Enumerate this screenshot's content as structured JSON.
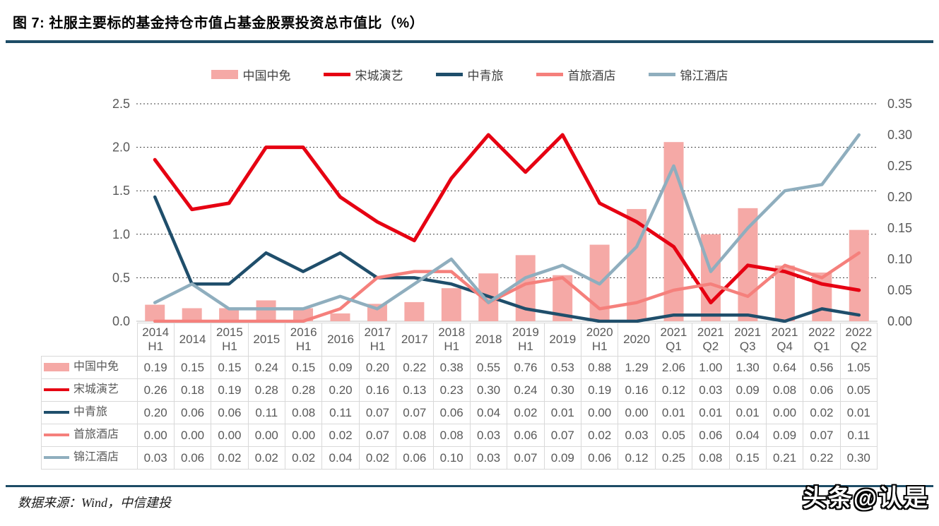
{
  "title": "图 7: 社服主要标的基金持仓市值占基金股票投资总市值比（%）",
  "source_note": "数据来源：Wind，中信建投",
  "watermark": "头条@认是",
  "colors": {
    "accent_rule": "#1D4C66",
    "bar_pink": "#F5A9A6",
    "red": "#E60012",
    "navy": "#1F4E6B",
    "salmon": "#F5807C",
    "gray_blue": "#8FAEBE",
    "axis_text": "#595959",
    "grid_border": "#D9D9D9"
  },
  "chart_data": {
    "type": "bar",
    "subtype": "combo-bar-line-dual-axis",
    "title": "社服主要标的基金持仓市值占基金股票投资总市值比（%）",
    "xlabel": "",
    "ylabel_left": "",
    "ylabel_right": "",
    "grid": "horizontal dashed",
    "legend_position": "top-center",
    "categories": [
      "2014 H1",
      "2014",
      "2015 H1",
      "2015",
      "2016 H1",
      "2016",
      "2017 H1",
      "2017",
      "2018 H1",
      "2018",
      "2019 H1",
      "2019",
      "2020 H1",
      "2020",
      "2021 Q1",
      "2021 Q2",
      "2021 Q3",
      "2021 Q4",
      "2022 Q1",
      "2022 Q2"
    ],
    "left_axis": {
      "min": 0.0,
      "max": 2.5,
      "ticks": [
        "2.5",
        "2.0",
        "1.5",
        "1.0",
        "0.5",
        "0.0"
      ]
    },
    "right_axis": {
      "min": 0.0,
      "max": 0.35,
      "ticks": [
        "0.35",
        "0.30",
        "0.25",
        "0.20",
        "0.15",
        "0.10",
        "0.05",
        "0.00"
      ]
    },
    "series": [
      {
        "name": "中国中免",
        "type": "bar",
        "axis": "left",
        "color": "#F5A9A6",
        "values": [
          0.19,
          0.15,
          0.15,
          0.24,
          0.15,
          0.09,
          0.2,
          0.22,
          0.38,
          0.55,
          0.76,
          0.53,
          0.88,
          1.29,
          2.06,
          1.0,
          1.3,
          0.64,
          0.56,
          1.05
        ]
      },
      {
        "name": "宋城演艺",
        "type": "line",
        "axis": "right",
        "color": "#E60012",
        "values": [
          0.26,
          0.18,
          0.19,
          0.28,
          0.28,
          0.2,
          0.16,
          0.13,
          0.23,
          0.3,
          0.24,
          0.3,
          0.19,
          0.16,
          0.12,
          0.03,
          0.09,
          0.08,
          0.06,
          0.05
        ]
      },
      {
        "name": "中青旅",
        "type": "line",
        "axis": "right",
        "color": "#1F4E6B",
        "values": [
          0.2,
          0.06,
          0.06,
          0.11,
          0.08,
          0.11,
          0.07,
          0.07,
          0.06,
          0.04,
          0.02,
          0.01,
          0.0,
          0.0,
          0.01,
          0.01,
          0.01,
          0.0,
          0.02,
          0.01
        ]
      },
      {
        "name": "首旅酒店",
        "type": "line",
        "axis": "right",
        "color": "#F5807C",
        "values": [
          0.0,
          0.0,
          0.0,
          0.0,
          0.0,
          0.02,
          0.07,
          0.08,
          0.08,
          0.03,
          0.06,
          0.07,
          0.02,
          0.03,
          0.05,
          0.06,
          0.04,
          0.09,
          0.07,
          0.11
        ]
      },
      {
        "name": "锦江酒店",
        "type": "line",
        "axis": "right",
        "color": "#8FAEBE",
        "values": [
          0.03,
          0.06,
          0.02,
          0.02,
          0.02,
          0.04,
          0.02,
          0.06,
          0.1,
          0.03,
          0.07,
          0.09,
          0.06,
          0.12,
          0.25,
          0.08,
          0.15,
          0.21,
          0.22,
          0.3
        ]
      }
    ]
  }
}
